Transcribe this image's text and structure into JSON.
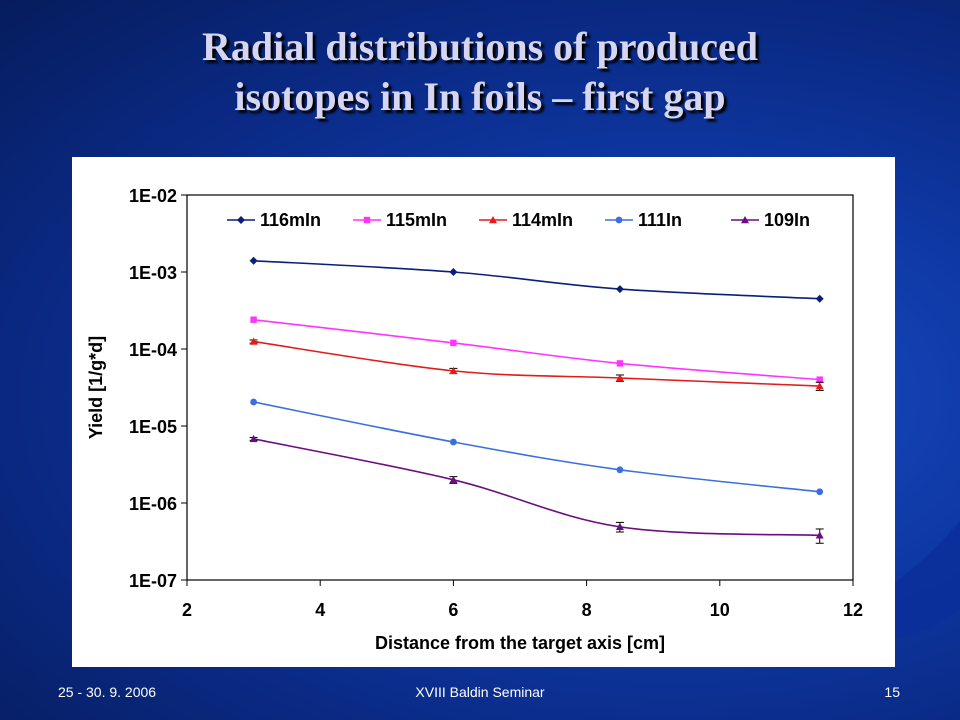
{
  "slide": {
    "title_line1": "Radial distributions of produced",
    "title_line2": "isotopes in In foils – first gap",
    "footer_left": "25 - 30. 9. 2006",
    "footer_center": "XVIII Baldin Seminar",
    "footer_right": "15"
  },
  "colors": {
    "background": "#0f3aa8",
    "title": "#d6d6f2",
    "116mIn": "#0a1f7a",
    "115mIn": "#ff33ff",
    "114mIn": "#e31b1b",
    "111In": "#3b6fe0",
    "109In": "#6a0d80"
  },
  "chart_data": {
    "type": "line",
    "xlabel": "Distance from the target axis [cm]",
    "ylabel": "Yield [1/g*d]",
    "xlim": [
      2,
      12
    ],
    "ylim": [
      1e-07,
      0.01
    ],
    "yscale": "log",
    "xticks": [
      "2",
      "4",
      "6",
      "8",
      "10",
      "12"
    ],
    "yticks": [
      "1E-02",
      "1E-03",
      "1E-04",
      "1E-05",
      "1E-06",
      "1E-07"
    ],
    "grid": false,
    "legend_position": "top",
    "x": [
      3,
      6,
      8.5,
      11.5
    ],
    "series": [
      {
        "name": "116mIn",
        "marker": "diamond",
        "values": [
          0.0014,
          0.001,
          0.0006,
          0.00045
        ],
        "errors": [
          0,
          0,
          0,
          0
        ]
      },
      {
        "name": "115mIn",
        "marker": "square",
        "values": [
          0.00024,
          0.00012,
          6.5e-05,
          4e-05
        ],
        "errors": [
          0,
          0,
          0,
          0
        ]
      },
      {
        "name": "114mIn",
        "marker": "triangle",
        "values": [
          0.000125,
          5.2e-05,
          4.2e-05,
          3.3e-05
        ],
        "errors": [
          6e-06,
          4e-06,
          4e-06,
          4e-06
        ]
      },
      {
        "name": "111In",
        "marker": "circle",
        "values": [
          2.05e-05,
          6.2e-06,
          2.7e-06,
          1.4e-06
        ],
        "errors": [
          0,
          0,
          0,
          0
        ]
      },
      {
        "name": "109In",
        "marker": "triangle",
        "values": [
          6.8e-06,
          2e-06,
          4.9e-07,
          3.8e-07
        ],
        "errors": [
          3e-07,
          2e-07,
          7e-08,
          8e-08
        ]
      }
    ]
  }
}
